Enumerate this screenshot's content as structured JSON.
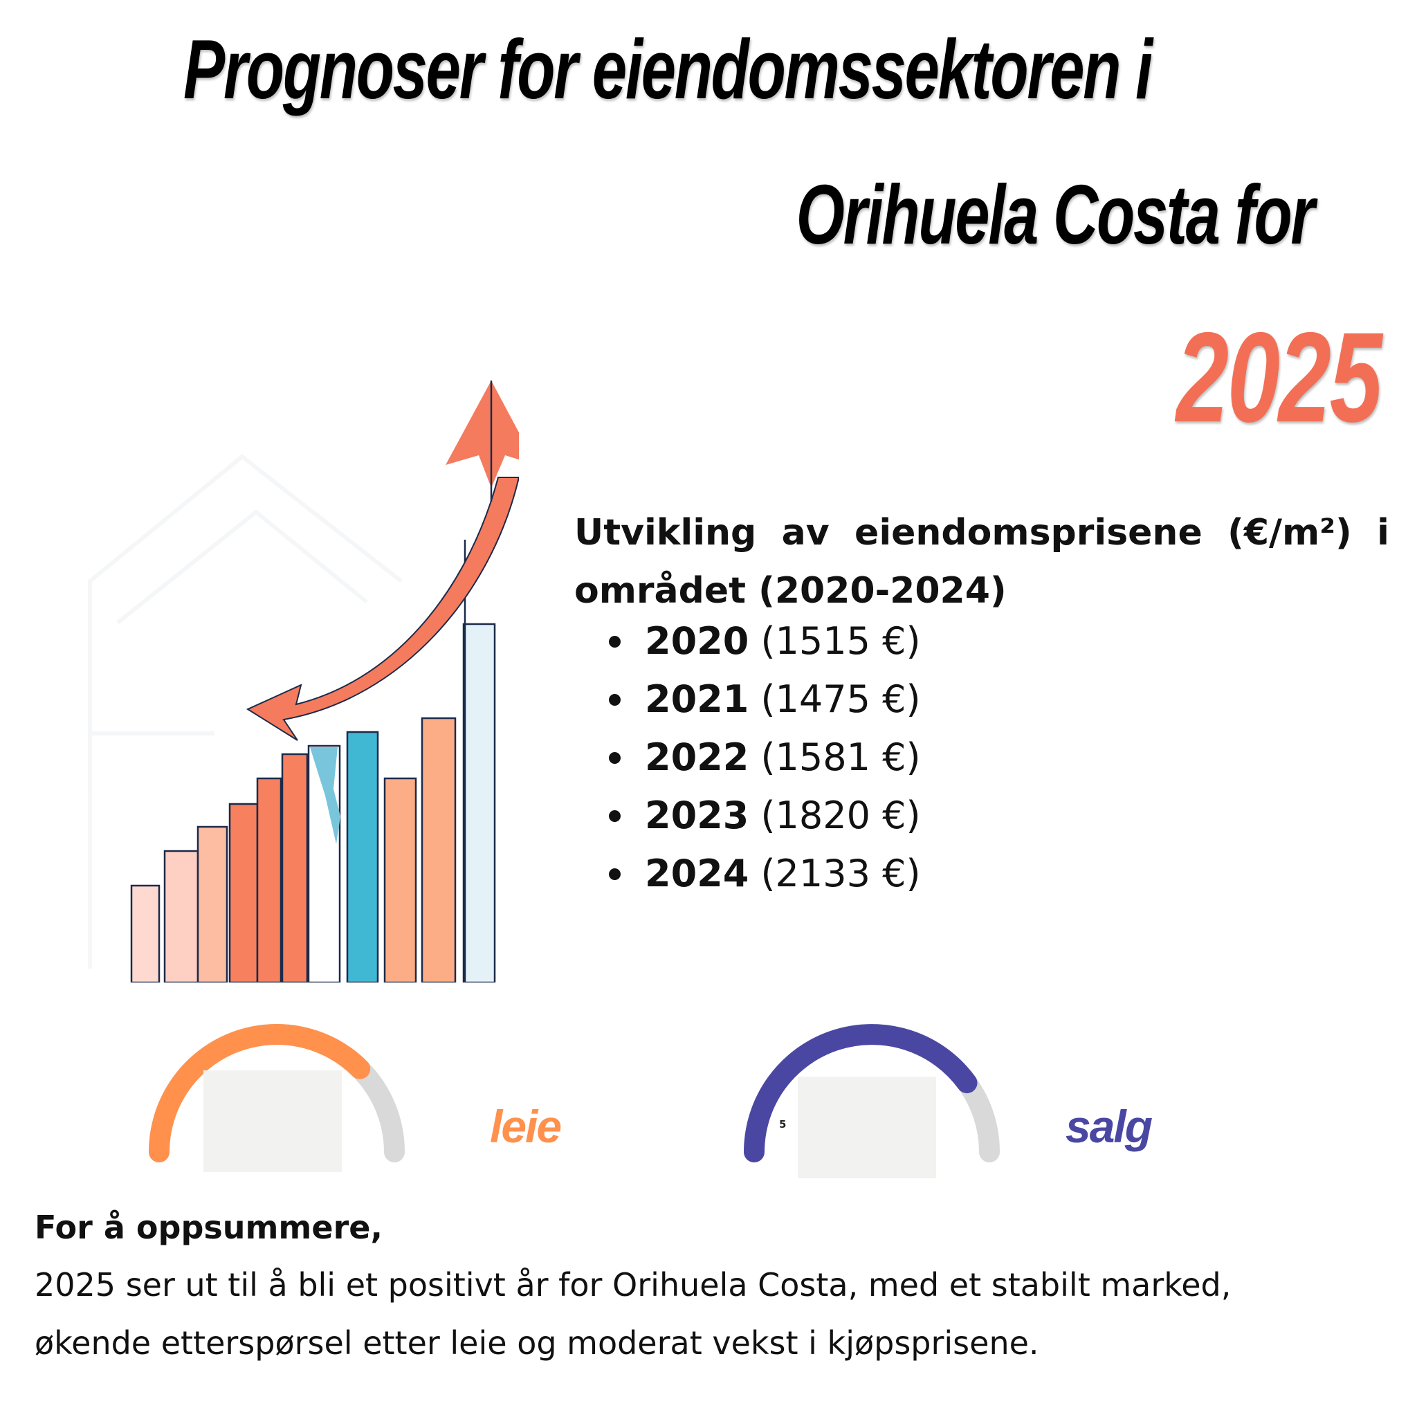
{
  "title": {
    "line1": "Prognoser for eiendomssektoren i",
    "line2": "Orihuela Costa for",
    "year": "2025"
  },
  "stats": {
    "heading": "Utvikling av eiendomsprisene (€/m²) i området (2020-2024)",
    "items": [
      {
        "year": "2020",
        "price": "(1515 €)"
      },
      {
        "year": "2021",
        "price": "(1475 €)"
      },
      {
        "year": "2022",
        "price": "(1581 €)"
      },
      {
        "year": "2023",
        "price": "(1820 €)"
      },
      {
        "year": "2024",
        "price": "(2133 €)"
      }
    ]
  },
  "gauges": {
    "rent": {
      "label": "leie",
      "color": "#ff914d"
    },
    "sales": {
      "label": "salg",
      "color": "#4a47a3",
      "tick": "5"
    }
  },
  "summary": {
    "heading": "For å oppsummere,",
    "body": "2025 ser ut til å bli et positivt år for Orihuela Costa, med et stabilt marked, økende etterspørsel etter leie og moderat vekst i kjøpsprisene."
  },
  "colors": {
    "accent": "#f26f55",
    "rent_gauge": "#ff914d",
    "sales_gauge": "#4a47a3",
    "gauge_track": "#d9d9d9"
  },
  "chart_data": [
    {
      "type": "gauge",
      "label": "leie",
      "fraction": 0.75
    },
    {
      "type": "gauge",
      "label": "salg",
      "fraction": 0.8
    }
  ]
}
